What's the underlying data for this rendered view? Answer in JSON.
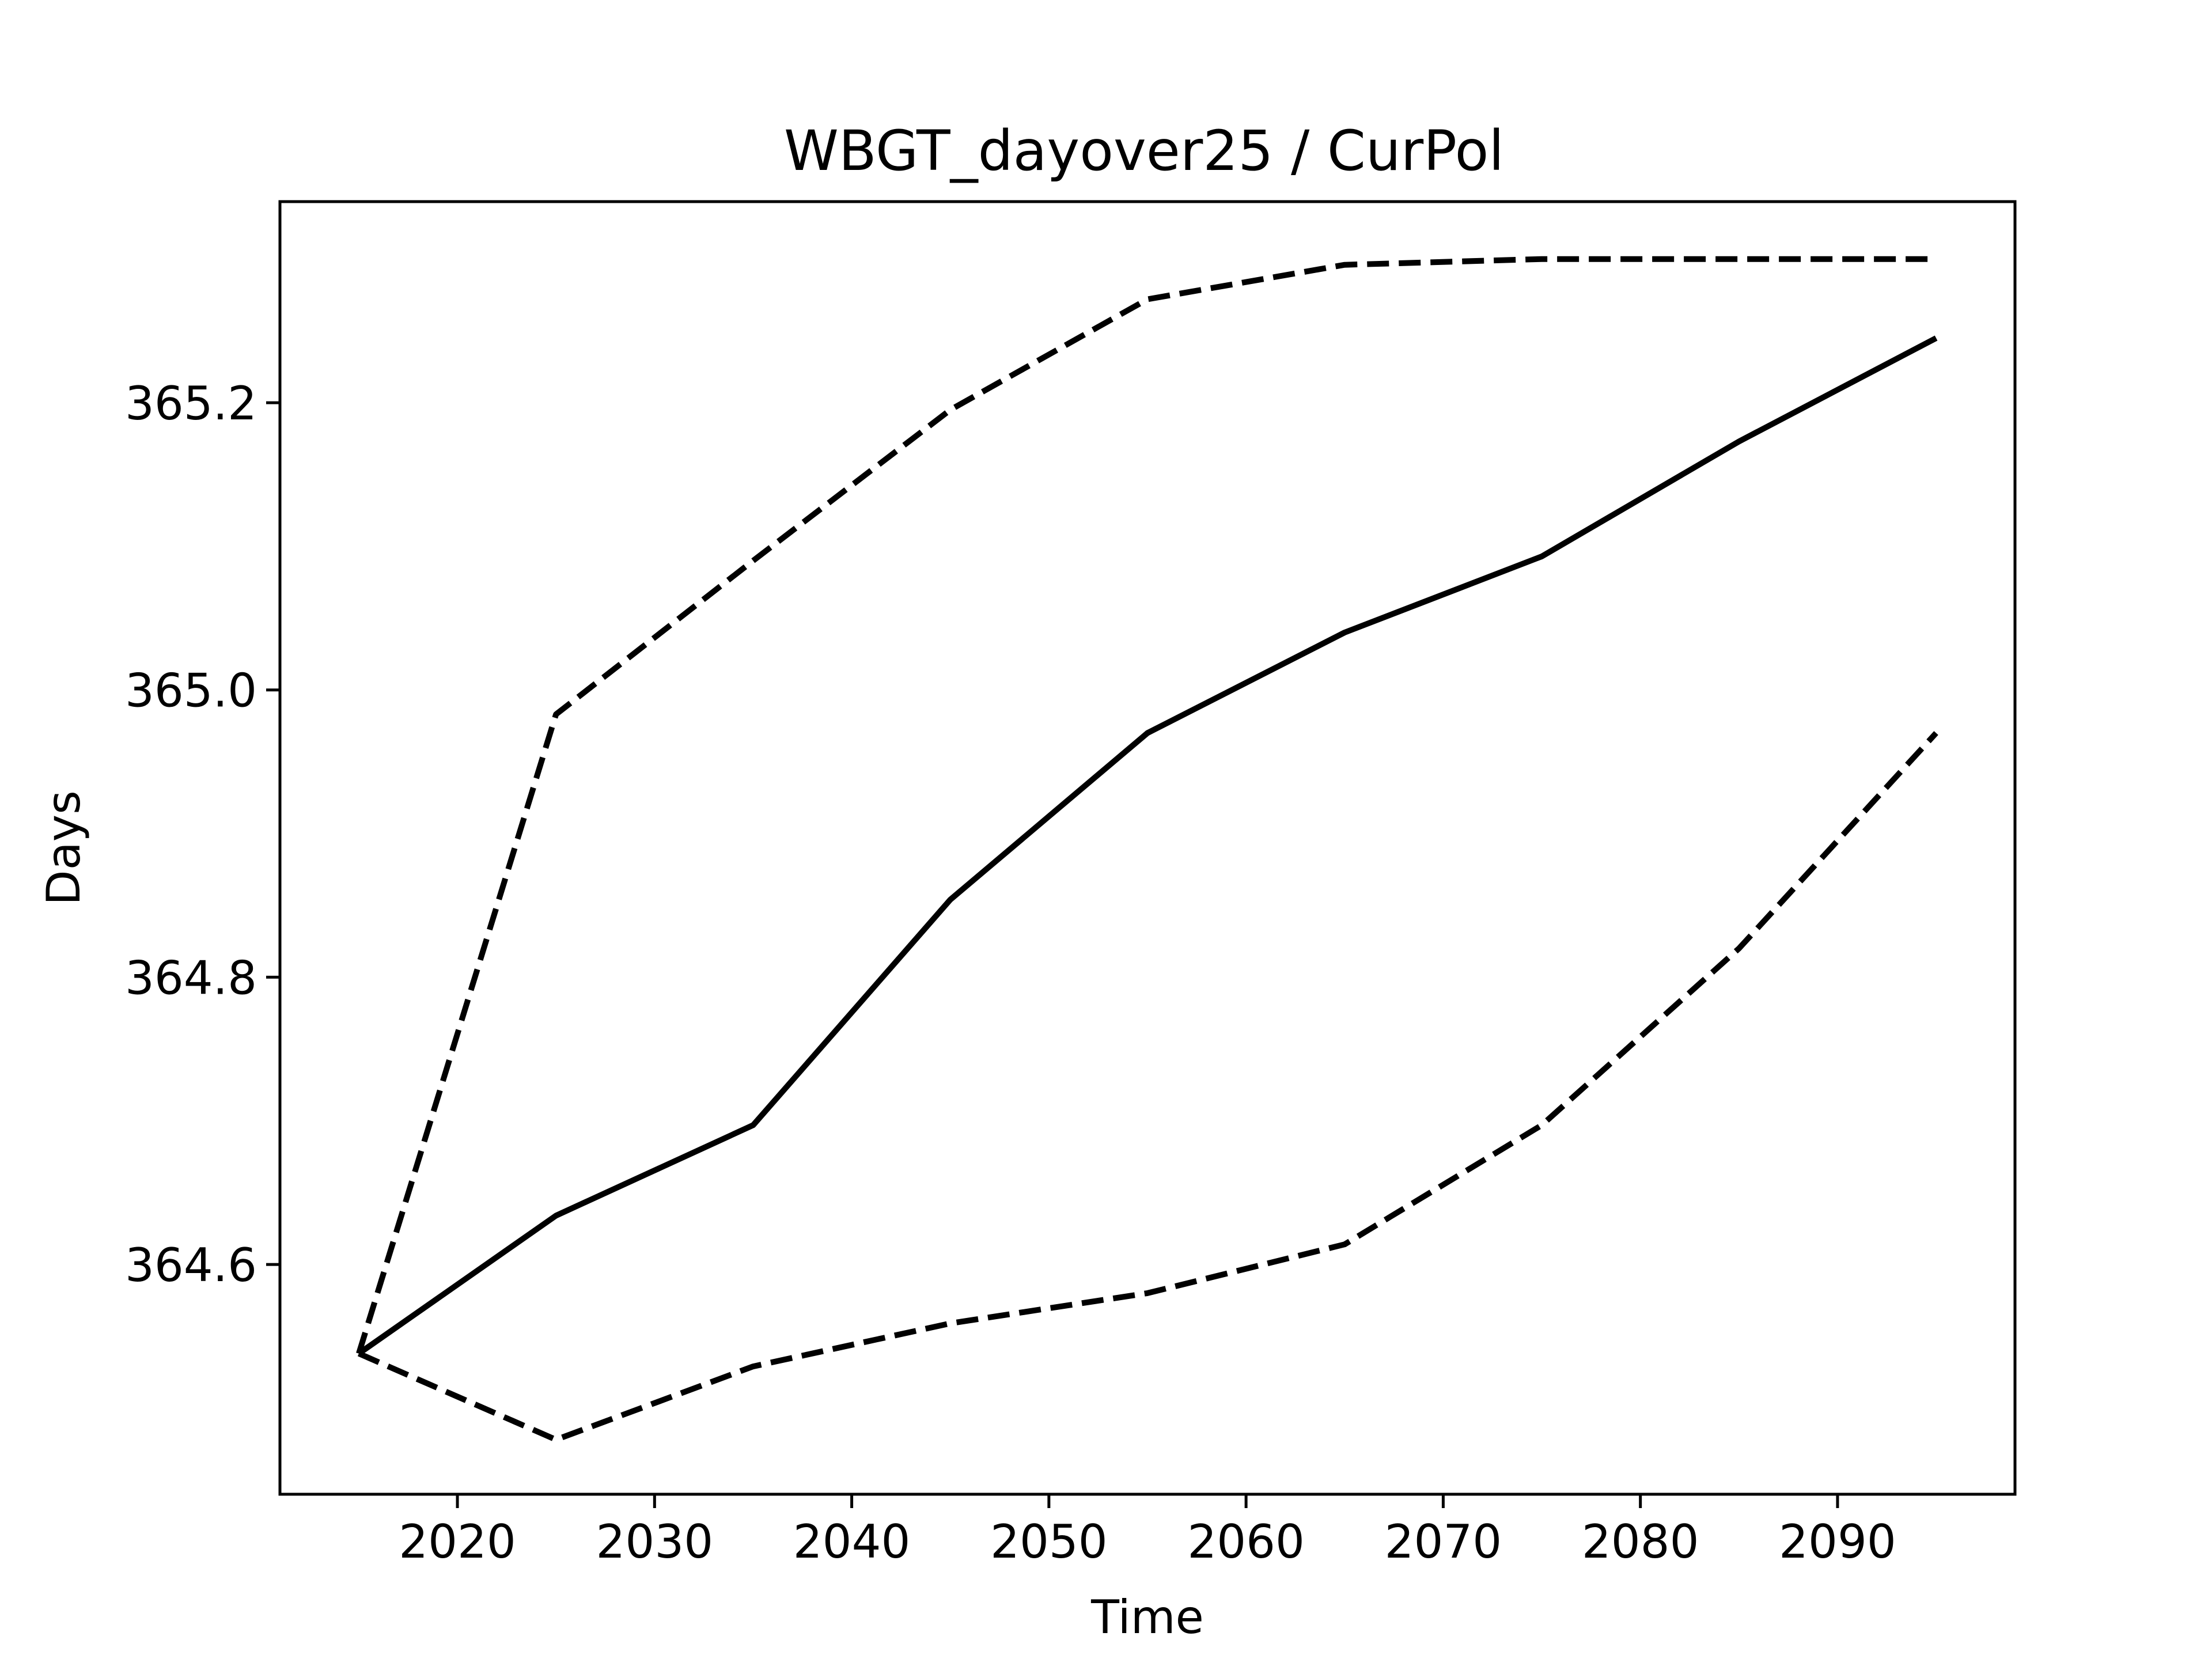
{
  "chart_data": {
    "type": "line",
    "title": "WBGT_dayover25 / CurPol",
    "xlabel": "Time",
    "ylabel": "Days",
    "x": [
      2015,
      2025,
      2035,
      2045,
      2055,
      2065,
      2075,
      2085,
      2095
    ],
    "xlim": [
      2011,
      2099
    ],
    "ylim": [
      364.44,
      365.34
    ],
    "xticks": [
      2020,
      2030,
      2040,
      2050,
      2060,
      2070,
      2080,
      2090
    ],
    "yticks": [
      364.6,
      364.8,
      365.0,
      365.2
    ],
    "ytick_labels": [
      "364.6",
      "364.8",
      "365.0",
      "365.2"
    ],
    "grid": false,
    "series": [
      {
        "style": "solid",
        "color": "#000000",
        "values": [
          364.538,
          364.634,
          364.697,
          364.854,
          364.97,
          365.04,
          365.093,
          365.173,
          365.245
        ]
      },
      {
        "style": "dashed",
        "color": "#000000",
        "values": [
          364.538,
          364.983,
          365.09,
          365.195,
          365.272,
          365.296,
          365.3,
          365.3,
          365.3
        ]
      },
      {
        "style": "dashed",
        "color": "#000000",
        "values": [
          364.538,
          364.478,
          364.529,
          364.559,
          364.58,
          364.614,
          364.697,
          364.82,
          364.97
        ]
      }
    ]
  }
}
